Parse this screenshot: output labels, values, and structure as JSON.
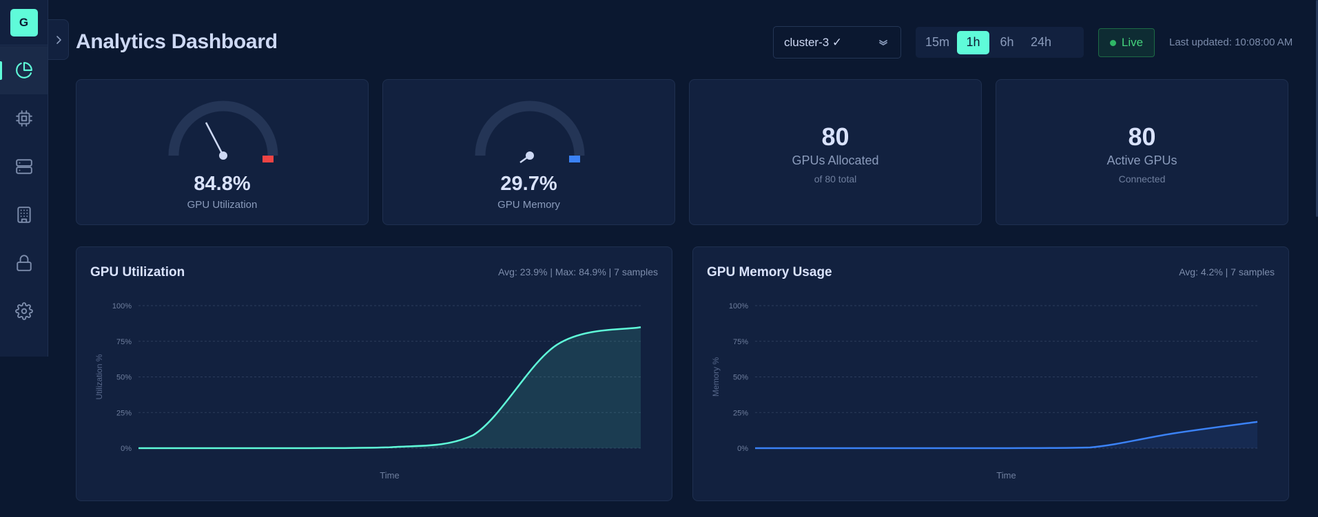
{
  "sidebar": {
    "logo_letter": "G",
    "items": [
      {
        "name": "analytics",
        "icon": "pie-chart-icon",
        "active": true
      },
      {
        "name": "gpus",
        "icon": "cpu-chip-icon",
        "active": false
      },
      {
        "name": "servers",
        "icon": "server-icon",
        "active": false
      },
      {
        "name": "organizations",
        "icon": "building-icon",
        "active": false
      },
      {
        "name": "security",
        "icon": "lock-icon",
        "active": false
      },
      {
        "name": "settings",
        "icon": "gear-icon",
        "active": false
      }
    ],
    "collapse_icon": "chevron-right-icon"
  },
  "header": {
    "title": "Analytics Dashboard",
    "cluster_select": {
      "value": "cluster-3 ✓",
      "icon": "chevron-double-down-icon"
    },
    "time_ranges": [
      {
        "label": "15m",
        "active": false
      },
      {
        "label": "1h",
        "active": true
      },
      {
        "label": "6h",
        "active": false
      },
      {
        "label": "24h",
        "active": false
      }
    ],
    "live_badge": "Live",
    "last_updated": "Last updated: 10:08:00 AM"
  },
  "stats": {
    "gpu_utilization": {
      "value": "84.8%",
      "label": "GPU Utilization",
      "percent": 84.8,
      "accent": "#ef4444"
    },
    "gpu_memory": {
      "value": "29.7%",
      "label": "GPU Memory",
      "percent": 29.7,
      "accent": "#3b82f6"
    },
    "gpus_allocated": {
      "value": "80",
      "label": "GPUs Allocated",
      "sub": "of 80 total"
    },
    "active_gpus": {
      "value": "80",
      "label": "Active GPUs",
      "sub": "Connected"
    }
  },
  "colors": {
    "accent": "#5ffbd9",
    "utilization_line": "#5ffbd9",
    "memory_line": "#3b82f6",
    "danger": "#ef4444",
    "live": "#44d27c"
  },
  "chart_data": [
    {
      "type": "area",
      "title": "GPU Utilization",
      "meta": "Avg: 23.9% | Max: 84.9% | 7 samples",
      "xlabel": "Time",
      "ylabel": "Utilization %",
      "ylim": [
        0,
        100
      ],
      "yticks": [
        "0%",
        "25%",
        "50%",
        "75%",
        "100%"
      ],
      "grid": true,
      "legend": null,
      "x": [
        1,
        2,
        3,
        4,
        5,
        6,
        7
      ],
      "series": [
        {
          "name": "GPU Utilization",
          "color": "#5ffbd9",
          "values": [
            0,
            0,
            0,
            0.6,
            9.2,
            72.6,
            84.9
          ]
        }
      ]
    },
    {
      "type": "area",
      "title": "GPU Memory Usage",
      "meta": "Avg: 4.2% | 7 samples",
      "xlabel": "Time",
      "ylabel": "Memory %",
      "ylim": [
        0,
        100
      ],
      "yticks": [
        "0%",
        "25%",
        "50%",
        "75%",
        "100%"
      ],
      "grid": true,
      "legend": null,
      "x": [
        1,
        2,
        3,
        4,
        5,
        6,
        7
      ],
      "series": [
        {
          "name": "GPU Memory",
          "color": "#3b82f6",
          "values": [
            0,
            0,
            0,
            0,
            0.5,
            10.4,
            18.5
          ]
        }
      ]
    }
  ]
}
